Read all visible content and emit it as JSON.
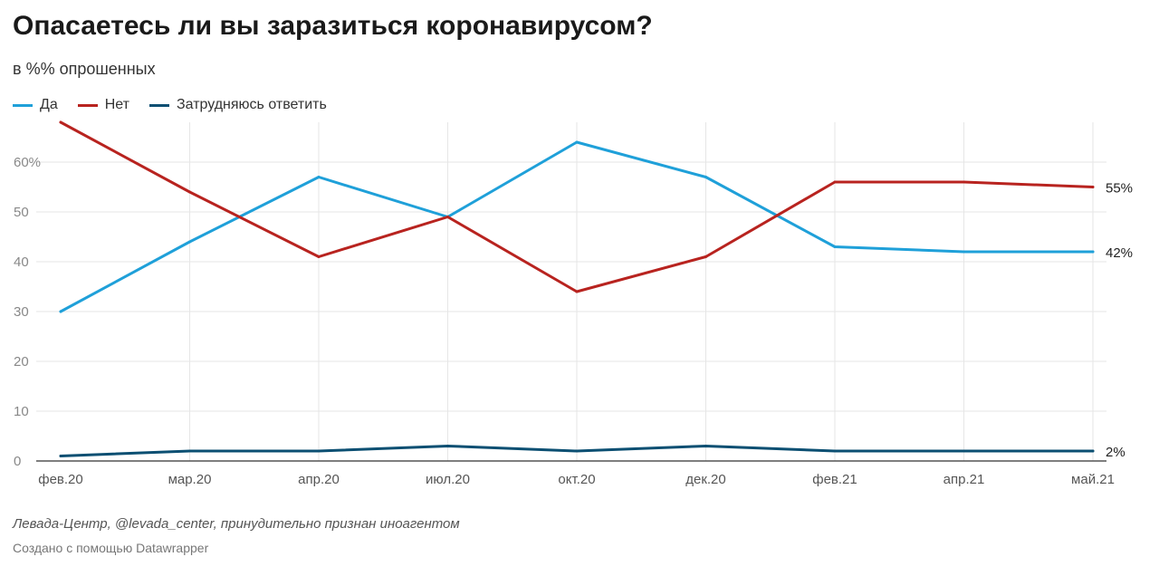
{
  "title": "Опасаетесь ли вы заразиться коронавирусом?",
  "subtitle": "в %% опрошенных",
  "footer": {
    "source": "Левада-Центр, @levada_center, принудительно признан иноагентом",
    "credit": "Создано с помощью Datawrapper"
  },
  "chart_data": {
    "type": "line",
    "title": "Опасаетесь ли вы заразиться коронавирусом?",
    "subtitle": "в %% опрошенных",
    "categories": [
      "фев.20",
      "мар.20",
      "апр.20",
      "июл.20",
      "окт.20",
      "дек.20",
      "фев.21",
      "апр.21",
      "май.21"
    ],
    "ylim": [
      0,
      68
    ],
    "yticks": [
      {
        "value": 0,
        "label": "0"
      },
      {
        "value": 10,
        "label": "10"
      },
      {
        "value": 20,
        "label": "20"
      },
      {
        "value": 30,
        "label": "30"
      },
      {
        "value": 40,
        "label": "40"
      },
      {
        "value": 50,
        "label": "50"
      },
      {
        "value": 60,
        "label": "60%"
      }
    ],
    "grid": true,
    "legend": "top-left",
    "series": [
      {
        "name": "Да",
        "color": "#1fa0d9",
        "values": [
          30,
          44,
          57,
          49,
          64,
          57,
          43,
          42,
          42
        ],
        "end_label": "42%"
      },
      {
        "name": "Нет",
        "color": "#b8231f",
        "values": [
          68,
          54,
          41,
          49,
          34,
          41,
          56,
          56,
          55
        ],
        "end_label": "55%"
      },
      {
        "name": "Затрудняюсь ответить",
        "color": "#0b4f72",
        "values": [
          1,
          2,
          2,
          3,
          2,
          3,
          2,
          2,
          2
        ],
        "end_label": "2%"
      }
    ]
  }
}
